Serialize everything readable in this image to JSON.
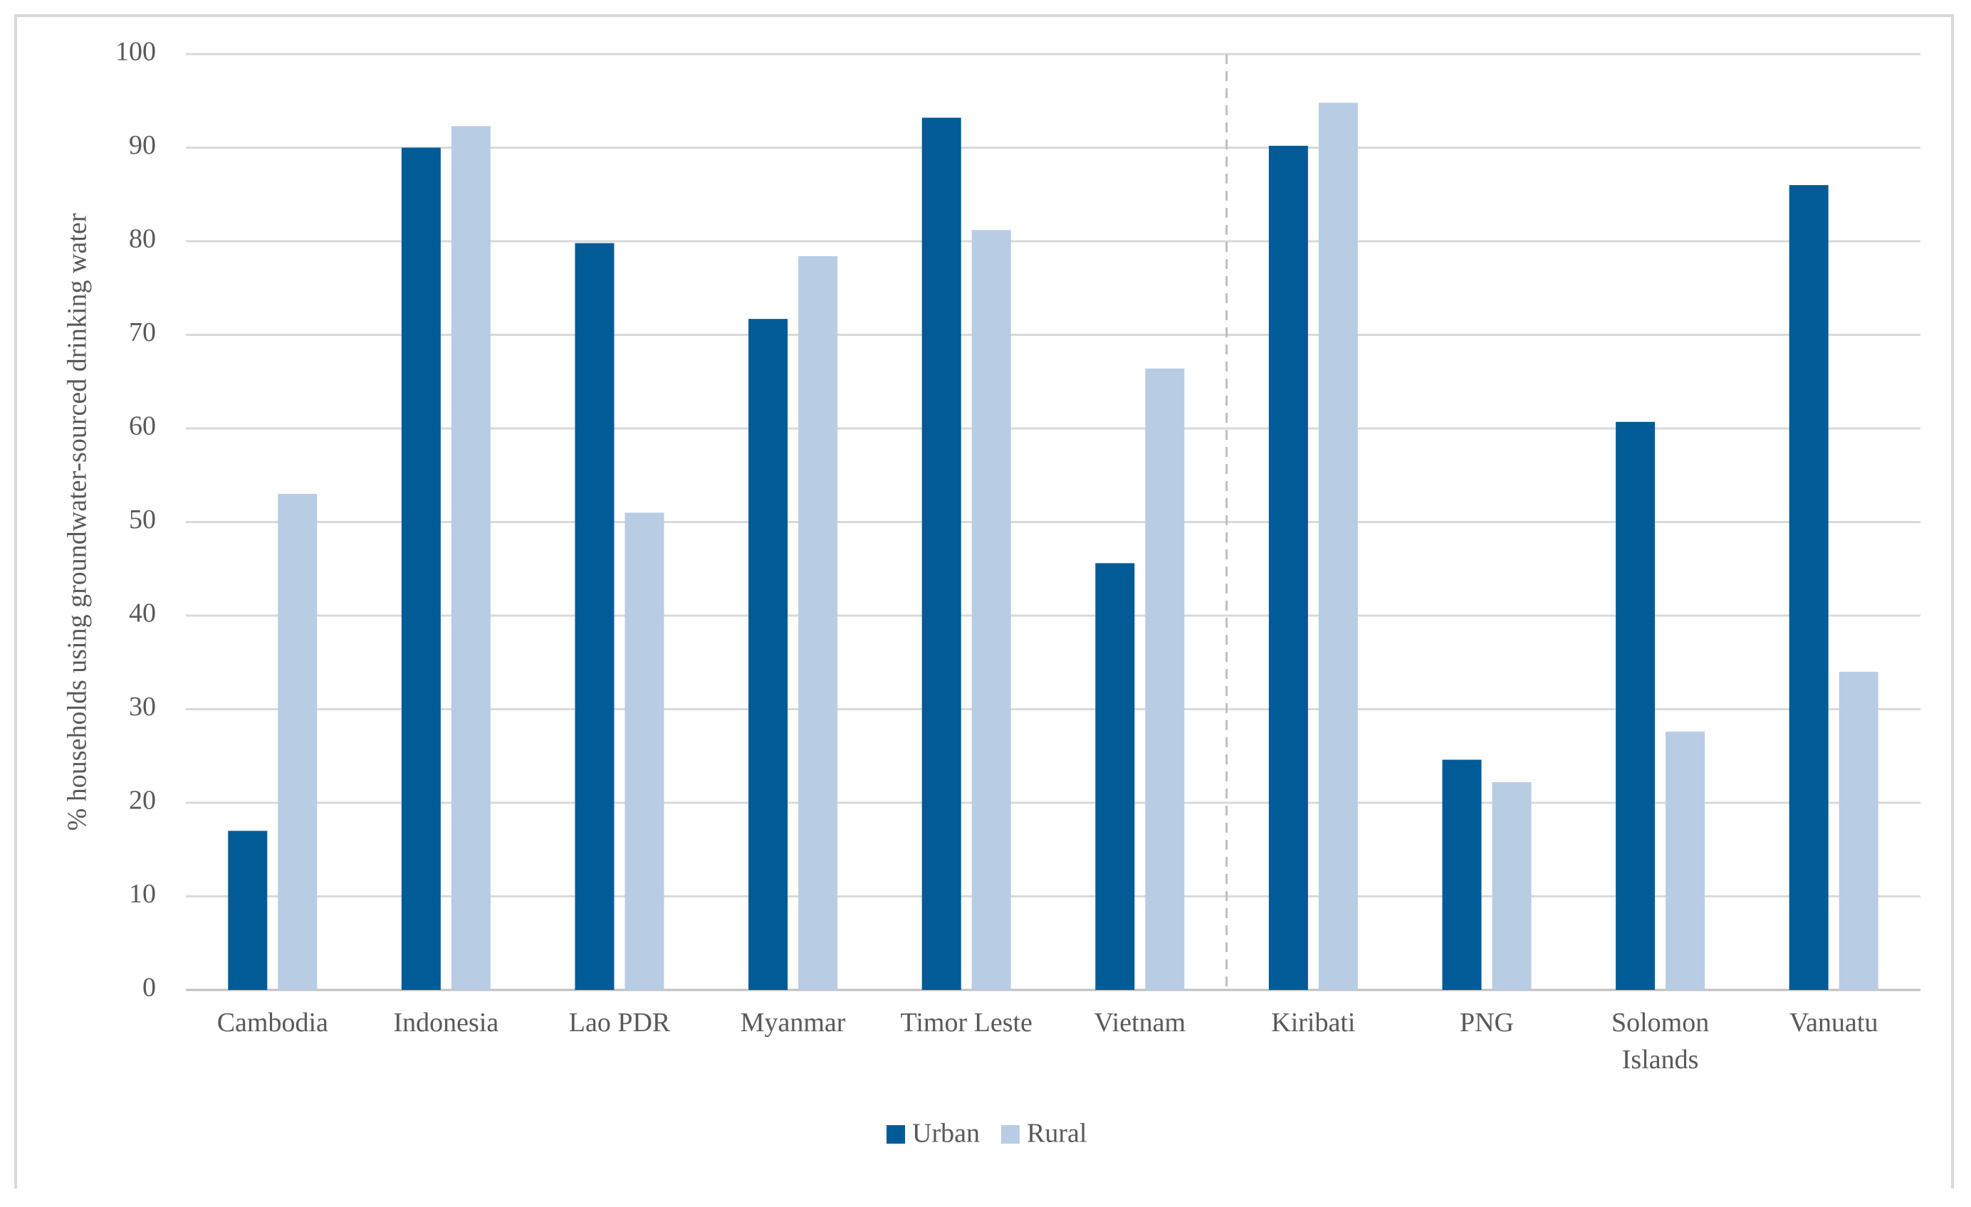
{
  "chart_data": {
    "type": "bar",
    "y_label": "% households using groundwater-sourced drinking water",
    "categories": [
      "Cambodia",
      "Indonesia",
      "Lao PDR",
      "Myanmar",
      "Timor Leste",
      "Vietnam",
      "Kiribati",
      "PNG",
      "Solomon Islands",
      "Vanuatu"
    ],
    "series": [
      {
        "name": "Urban",
        "color": "#005b96",
        "values": [
          17,
          90,
          79.8,
          71.7,
          93.2,
          45.6,
          90.2,
          24.6,
          60.7,
          86
        ]
      },
      {
        "name": "Rural",
        "color": "#b8cce4",
        "values": [
          53,
          92.3,
          51,
          78.4,
          81.2,
          66.4,
          94.8,
          22.2,
          27.6,
          34
        ]
      }
    ],
    "ylim": [
      0,
      100
    ],
    "yticks": [
      0,
      10,
      20,
      30,
      40,
      50,
      60,
      70,
      80,
      90,
      100
    ],
    "grid": true,
    "legend": "bottom"
  }
}
